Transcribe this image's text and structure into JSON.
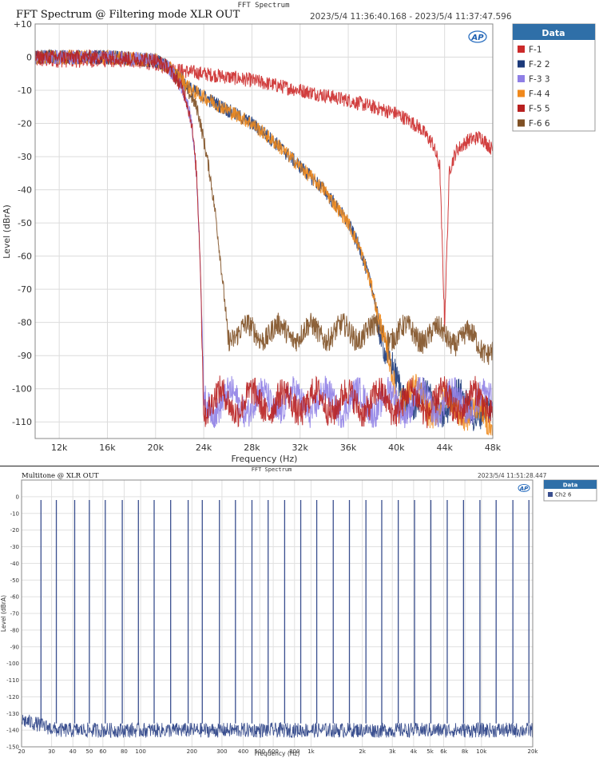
{
  "chart_data": [
    {
      "type": "line",
      "header": "FFT Spectrum",
      "title": "FFT Spectrum @ Filtering mode XLR OUT",
      "timestamp": "2023/5/4 11:36:40.168 - 2023/5/4 11:37:47.596",
      "xlabel": "Frequency (Hz)",
      "ylabel": "Level (dBrA)",
      "xlim": [
        10000,
        48000
      ],
      "ylim": [
        -115,
        10
      ],
      "x_ticks": [
        12000,
        16000,
        20000,
        24000,
        28000,
        32000,
        36000,
        40000,
        44000,
        48000
      ],
      "x_tick_labels": [
        "12k",
        "16k",
        "20k",
        "24k",
        "28k",
        "32k",
        "36k",
        "40k",
        "44k",
        "48k"
      ],
      "y_ticks": [
        10,
        0,
        -10,
        -20,
        -30,
        -40,
        -50,
        -60,
        -70,
        -80,
        -90,
        -100,
        -110
      ],
      "y_tick_labels": [
        "+10",
        "0",
        "-10",
        "-20",
        "-30",
        "-40",
        "-50",
        "-60",
        "-70",
        "-80",
        "-90",
        "-100",
        "-110"
      ],
      "grid": true,
      "legend_title": "Data",
      "legend_placement": "right",
      "series": [
        {
          "name": "F-1",
          "color": "#cc2a2a",
          "x": [
            10000,
            14000,
            18000,
            20000,
            22000,
            24000,
            26000,
            28000,
            30000,
            32000,
            34000,
            36000,
            38000,
            40000,
            41000,
            42000,
            43000,
            43600,
            44000,
            44400,
            45000,
            46000,
            47000,
            48000
          ],
          "y": [
            -1,
            -1,
            -1,
            -2,
            -4,
            -5,
            -6,
            -7,
            -8.5,
            -10,
            -11.5,
            -13,
            -15,
            -17,
            -19,
            -21.5,
            -26,
            -33,
            -80,
            -34,
            -28,
            -25,
            -24,
            -28
          ]
        },
        {
          "name": "F-2 2",
          "color": "#1c3a7a",
          "x": [
            10000,
            16000,
            20000,
            21000,
            22000,
            23000,
            24000,
            26000,
            28000,
            30000,
            32000,
            34000,
            36000,
            37000,
            38000,
            39000,
            40000,
            42000,
            44000,
            46000,
            48000
          ],
          "y": [
            0,
            0,
            -1,
            -3,
            -6,
            -10,
            -12,
            -16,
            -20,
            -26,
            -33,
            -40,
            -50,
            -58,
            -70,
            -88,
            -100,
            -104,
            -105,
            -104,
            -110
          ]
        },
        {
          "name": "F-3 3",
          "color": "#8f7fe6",
          "x": [
            10000,
            16000,
            20000,
            21000,
            22000,
            22500,
            23000,
            23400,
            23700,
            24000,
            26000,
            30000,
            34000,
            38000,
            42000,
            46000,
            48000
          ],
          "y": [
            0,
            0,
            -1,
            -3,
            -8,
            -12,
            -20,
            -35,
            -60,
            -104,
            -104,
            -104,
            -104,
            -104,
            -104,
            -104,
            -104
          ]
        },
        {
          "name": "F-4 4",
          "color": "#f0891c",
          "x": [
            10000,
            16000,
            20000,
            21000,
            22000,
            23000,
            24000,
            26000,
            28000,
            30000,
            32000,
            34000,
            36000,
            37000,
            38000,
            39000,
            40000,
            42000,
            44000,
            46000,
            48000
          ],
          "y": [
            0,
            0,
            -1,
            -3,
            -6,
            -10,
            -12,
            -16,
            -20,
            -26,
            -33,
            -40,
            -50,
            -58,
            -70,
            -88,
            -100,
            -104,
            -105,
            -106,
            -111
          ]
        },
        {
          "name": "F-5 5",
          "color": "#b82020",
          "x": [
            10000,
            16000,
            20000,
            21000,
            22000,
            22500,
            23000,
            23400,
            23700,
            24000,
            26000,
            30000,
            34000,
            38000,
            42000,
            46000,
            48000
          ],
          "y": [
            0,
            0,
            -1,
            -3,
            -8,
            -12,
            -20,
            -35,
            -60,
            -104,
            -104,
            -104,
            -104,
            -104,
            -104,
            -104,
            -104
          ]
        },
        {
          "name": "F-6 6",
          "color": "#7f5024",
          "x": [
            10000,
            16000,
            20000,
            21000,
            22000,
            23000,
            23500,
            24000,
            24500,
            25000,
            25500,
            26000,
            28000,
            32000,
            36000,
            40000,
            44000,
            46000,
            48000
          ],
          "y": [
            0,
            0,
            -1,
            -3,
            -7,
            -12,
            -16,
            -25,
            -35,
            -48,
            -65,
            -83,
            -83,
            -83,
            -83,
            -83,
            -84,
            -85,
            -88
          ]
        }
      ]
    },
    {
      "type": "line",
      "header": "FFT Spectrum",
      "title": "Multitone @ XLR OUT",
      "timestamp": "2023/5/4 11:51:28.447",
      "xlabel": "Frequency (Hz)",
      "ylabel": "Level (dBrA)",
      "xscale": "log",
      "xlim": [
        20,
        20000
      ],
      "ylim": [
        -150,
        10
      ],
      "x_ticks": [
        20,
        30,
        40,
        50,
        60,
        80,
        100,
        200,
        300,
        400,
        500,
        600,
        800,
        1000,
        2000,
        3000,
        4000,
        5000,
        6000,
        8000,
        10000,
        20000
      ],
      "x_tick_labels": [
        "20",
        "30",
        "40",
        "50",
        "60",
        "80",
        "100",
        "200",
        "300",
        "400",
        "500",
        "600",
        "800",
        "1k",
        "2k",
        "3k",
        "4k",
        "5k",
        "6k",
        "8k",
        "10k",
        "20k"
      ],
      "y_ticks": [
        0,
        -10,
        -20,
        -30,
        -40,
        -50,
        -60,
        -70,
        -80,
        -90,
        -100,
        -110,
        -120,
        -130,
        -140,
        -150
      ],
      "y_tick_labels": [
        "0",
        "-10",
        "-20",
        "-30",
        "-40",
        "-50",
        "-60",
        "-70",
        "-80",
        "-90",
        "-100",
        "-110",
        "-120",
        "-130",
        "-140",
        "-150"
      ],
      "grid": true,
      "legend_title": "Data",
      "legend_placement": "right",
      "series": [
        {
          "name": "Ch2 6",
          "color": "#3a4f8f",
          "noise_floor": -140,
          "tone_level": -2,
          "tones": [
            26,
            32,
            41,
            50,
            62,
            78,
            97,
            120,
            150,
            190,
            230,
            290,
            360,
            450,
            560,
            700,
            870,
            1080,
            1350,
            1680,
            2100,
            2600,
            3250,
            4050,
            5050,
            6300,
            7850,
            9800,
            12200,
            15300,
            19000
          ]
        }
      ]
    }
  ],
  "ui": {
    "ap_logo": "AP"
  }
}
